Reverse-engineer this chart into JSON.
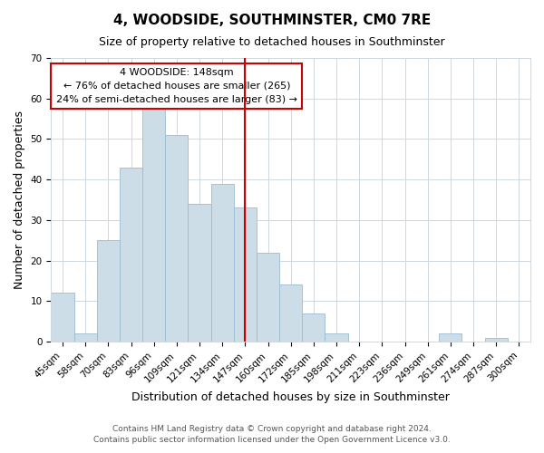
{
  "title": "4, WOODSIDE, SOUTHMINSTER, CM0 7RE",
  "subtitle": "Size of property relative to detached houses in Southminster",
  "xlabel": "Distribution of detached houses by size in Southminster",
  "ylabel": "Number of detached properties",
  "footer_line1": "Contains HM Land Registry data © Crown copyright and database right 2024.",
  "footer_line2": "Contains public sector information licensed under the Open Government Licence v3.0.",
  "bin_labels": [
    "45sqm",
    "58sqm",
    "70sqm",
    "83sqm",
    "96sqm",
    "109sqm",
    "121sqm",
    "134sqm",
    "147sqm",
    "160sqm",
    "172sqm",
    "185sqm",
    "198sqm",
    "211sqm",
    "223sqm",
    "236sqm",
    "249sqm",
    "261sqm",
    "274sqm",
    "287sqm",
    "300sqm"
  ],
  "bar_heights": [
    12,
    2,
    25,
    43,
    58,
    51,
    34,
    39,
    33,
    22,
    14,
    7,
    2,
    0,
    0,
    0,
    0,
    2,
    0,
    1,
    0
  ],
  "bar_color": "#ccdde8",
  "bar_edgecolor": "#9bbcd0",
  "vline_bar_idx": 8,
  "vline_color": "#cc0000",
  "ylim": [
    0,
    70
  ],
  "yticks": [
    0,
    10,
    20,
    30,
    40,
    50,
    60,
    70
  ],
  "annotation_title": "4 WOODSIDE: 148sqm",
  "annotation_line1": "← 76% of detached houses are smaller (265)",
  "annotation_line2": "24% of semi-detached houses are larger (83) →",
  "annotation_box_color": "#ffffff",
  "annotation_box_edgecolor": "#cc0000",
  "grid_color": "#d0d8e0",
  "background_color": "#ffffff",
  "title_fontsize": 11,
  "subtitle_fontsize": 9,
  "xlabel_fontsize": 9,
  "ylabel_fontsize": 9,
  "tick_fontsize": 7.5,
  "annotation_fontsize": 8,
  "footer_fontsize": 6.5
}
